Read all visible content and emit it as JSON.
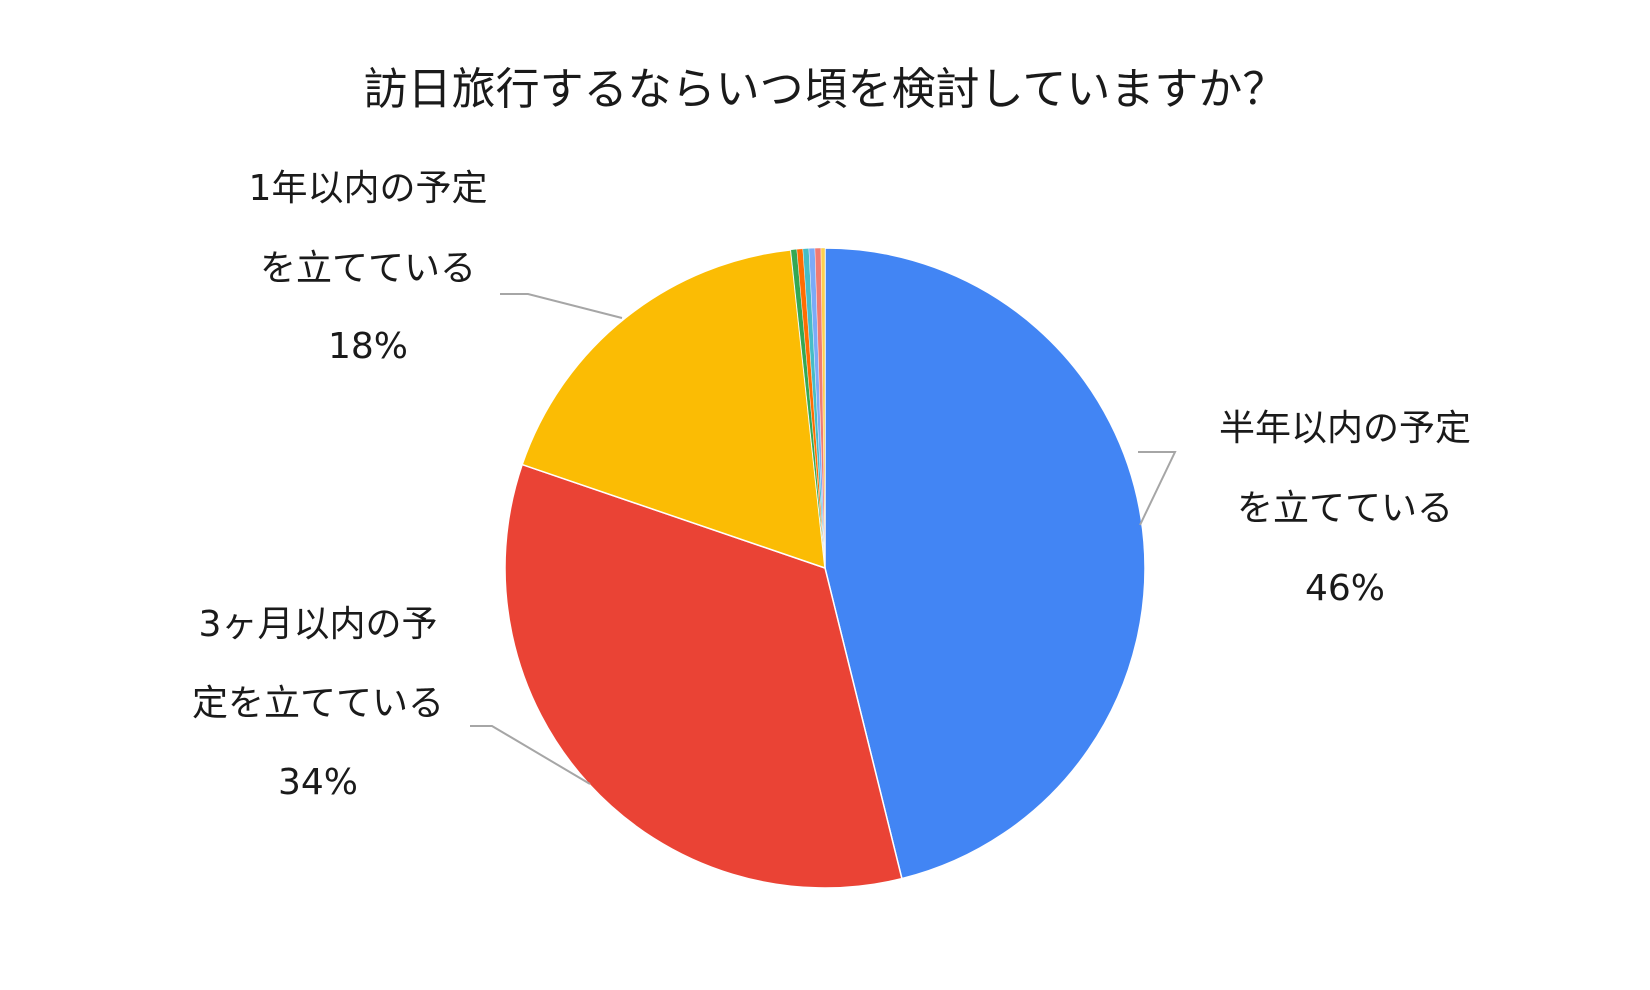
{
  "chart_data": {
    "type": "pie",
    "title": "訪日旅行するならいつ頃を検討していますか？",
    "slices": [
      {
        "name": "半年以内の予定を立てている",
        "label_lines": [
          "半年以内の予定",
          "を立てている",
          "46%"
        ],
        "value": 46,
        "color": "#4285F4"
      },
      {
        "name": "3ヶ月以内の予定を立てている",
        "label_lines": [
          "3ヶ月以内の予",
          "定を立てている",
          "34%"
        ],
        "value": 34,
        "color": "#EA4335"
      },
      {
        "name": "1年以内の予定を立てている",
        "label_lines": [
          "1年以内の予定",
          "を立てている",
          "18%"
        ],
        "value": 18,
        "color": "#FBBC04"
      },
      {
        "name": "",
        "label_lines": [],
        "value": 0.3,
        "color": "#34A853"
      },
      {
        "name": "",
        "label_lines": [],
        "value": 0.3,
        "color": "#FF6D01"
      },
      {
        "name": "",
        "label_lines": [],
        "value": 0.3,
        "color": "#46BDC6"
      },
      {
        "name": "",
        "label_lines": [],
        "value": 0.3,
        "color": "#7BAAF7"
      },
      {
        "name": "",
        "label_lines": [],
        "value": 0.3,
        "color": "#F07B72"
      },
      {
        "name": "",
        "label_lines": [],
        "value": 0.2,
        "color": "#FCD04F"
      }
    ]
  }
}
